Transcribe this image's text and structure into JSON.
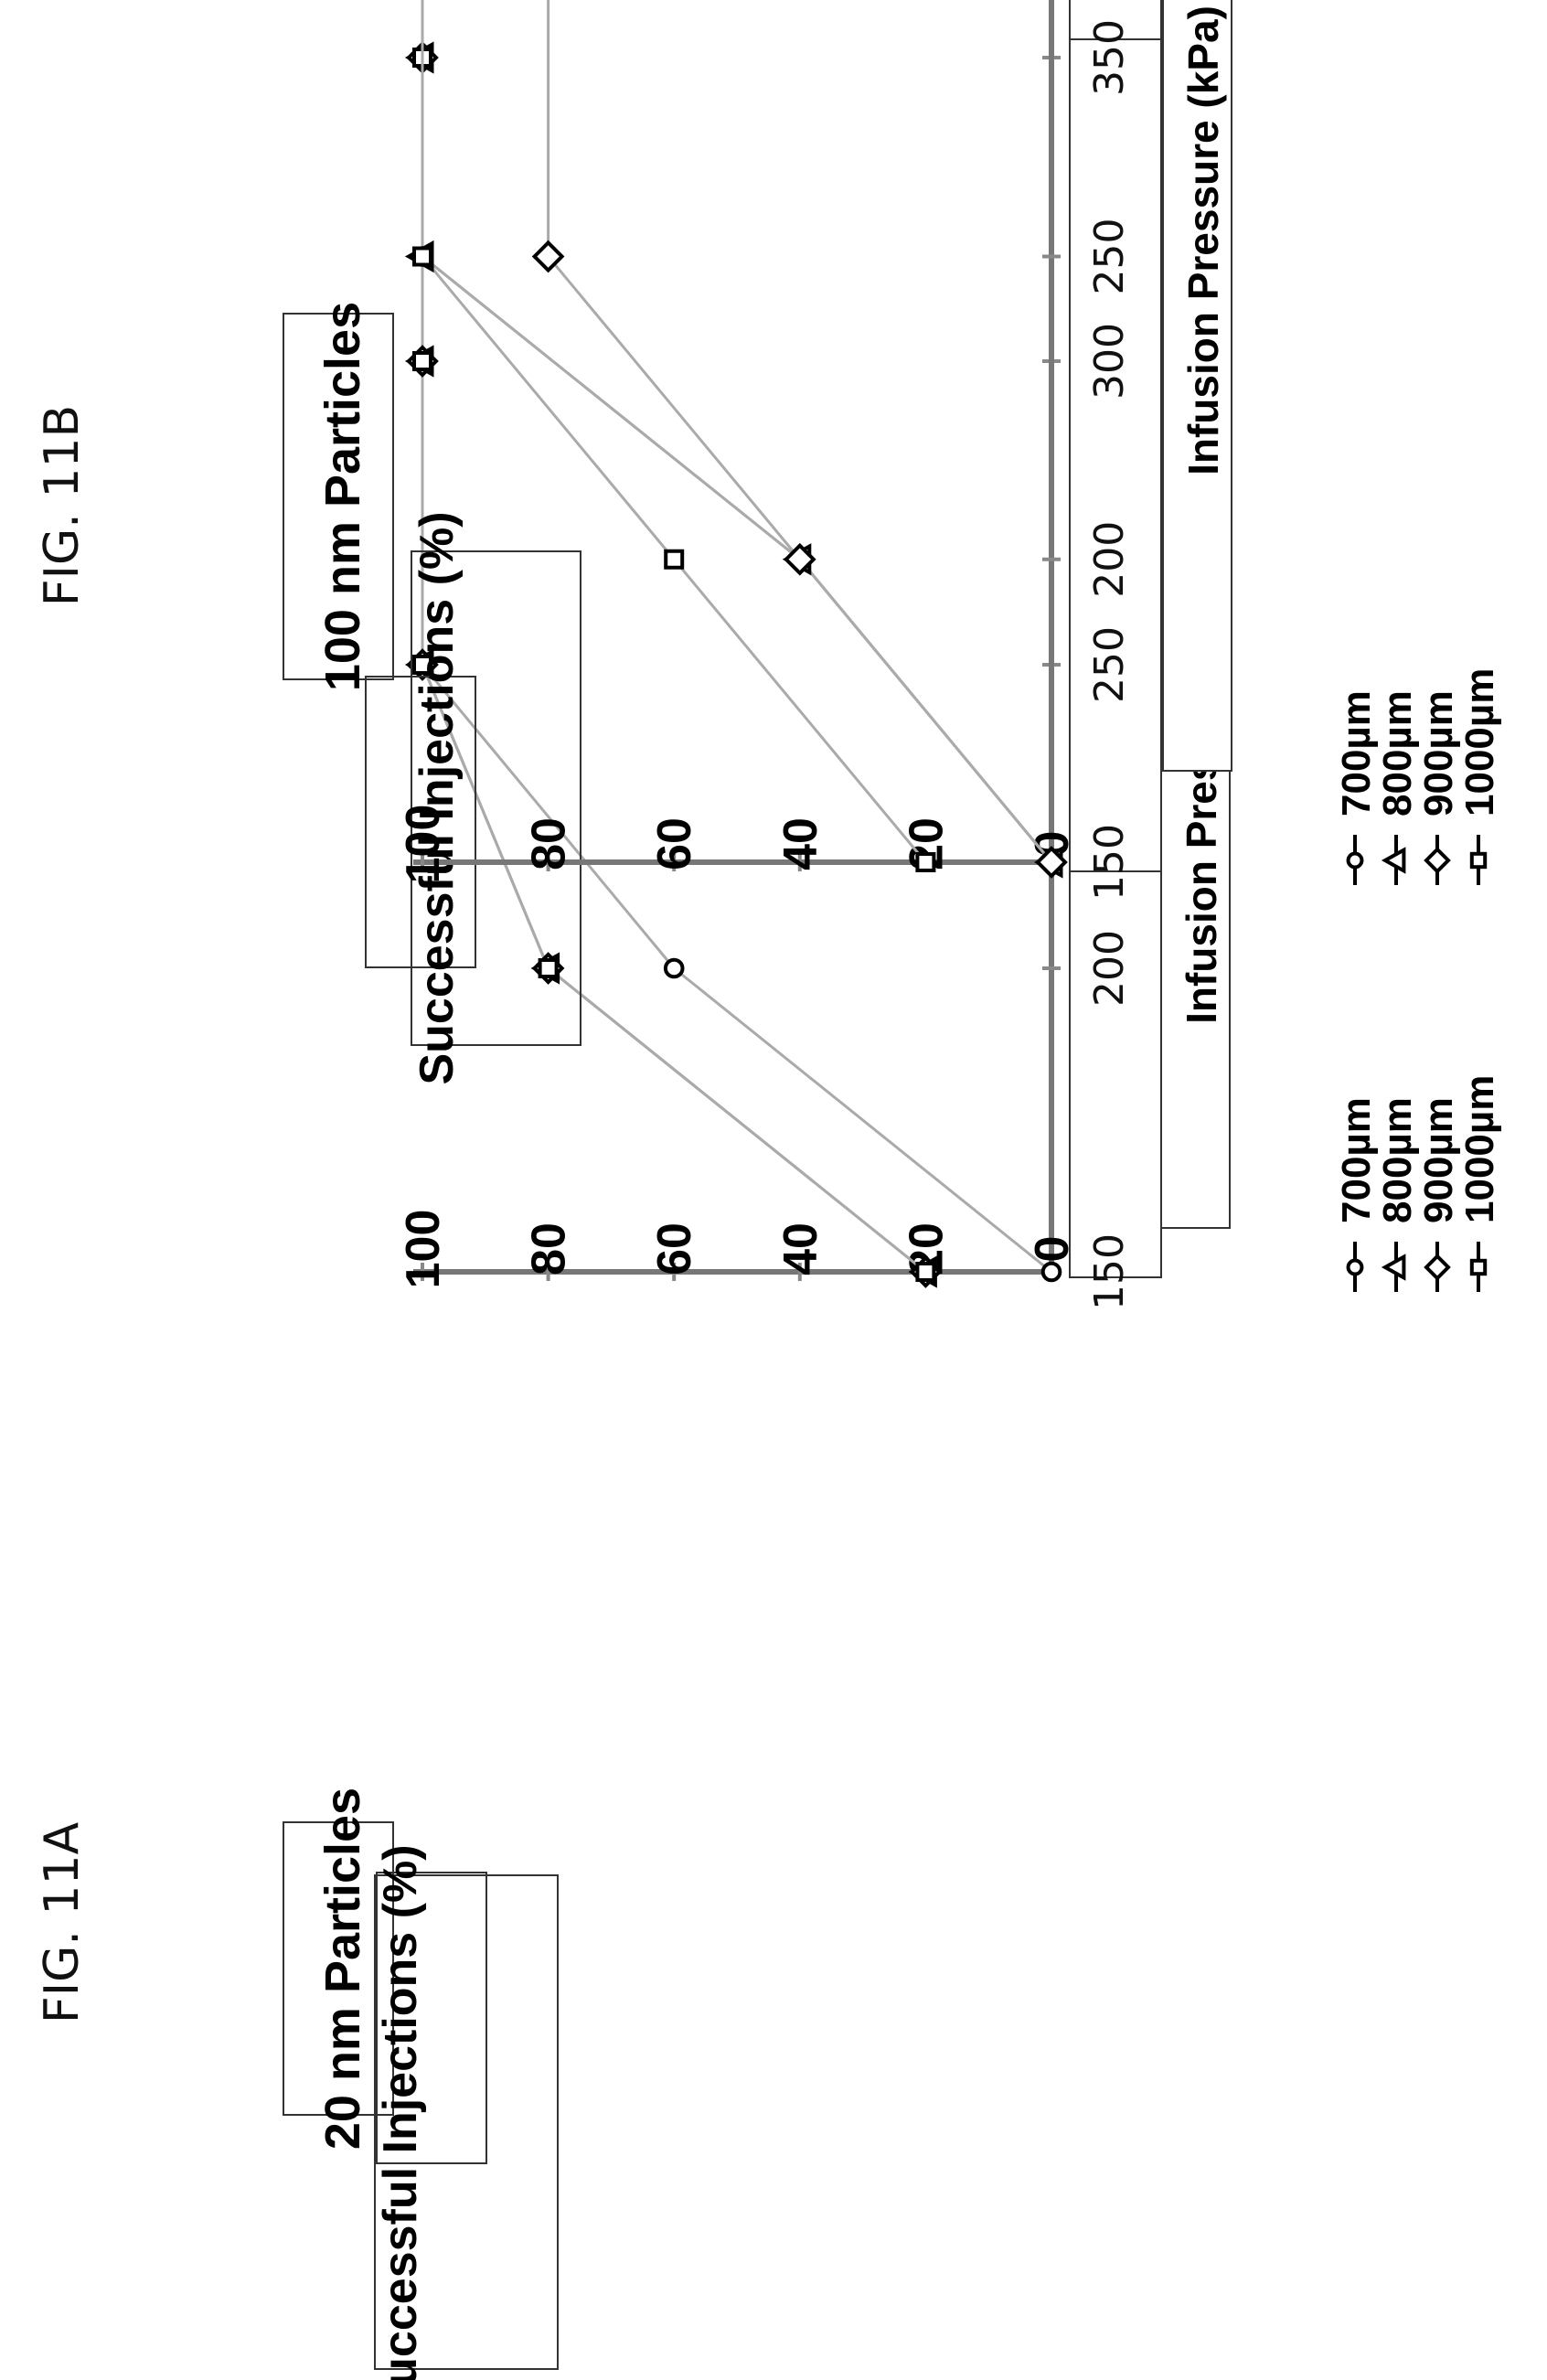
{
  "figure": {
    "charts": [
      {
        "fig_label": "FIG. 11A",
        "title": "20 nm Particles"
      },
      {
        "fig_label": "FIG. 11B",
        "title": "100 nm Particles"
      }
    ]
  },
  "chart_data": [
    {
      "type": "line",
      "title": "20 nm Particles",
      "xlabel": "Infusion Pressure (kPa)",
      "ylabel": "Successful Injections (%)",
      "x": [
        150,
        200,
        250,
        300,
        350
      ],
      "x_ticks": [
        "150",
        "200",
        "250",
        "300",
        "350"
      ],
      "y_ticks": [
        "0",
        "20",
        "40",
        "60",
        "80",
        "100"
      ],
      "xlim": [
        150,
        350
      ],
      "ylim": [
        0,
        100
      ],
      "grid": false,
      "legend_position": "bottom",
      "series": [
        {
          "name": "700µm",
          "marker": "circle",
          "values": [
            0,
            60,
            100,
            100,
            100
          ]
        },
        {
          "name": "800µm",
          "marker": "triangle",
          "values": [
            20,
            80,
            100,
            100,
            100
          ]
        },
        {
          "name": "900µm",
          "marker": "diamond",
          "values": [
            20,
            80,
            100,
            100,
            100
          ]
        },
        {
          "name": "1000µm",
          "marker": "square",
          "values": [
            20,
            80,
            100,
            100,
            100
          ]
        }
      ]
    },
    {
      "type": "line",
      "title": "100 nm Particles",
      "xlabel": "Infusion Pressure (kPa)",
      "ylabel": "Successful Injections (%)",
      "x": [
        150,
        200,
        250,
        300,
        350
      ],
      "x_ticks": [
        "150",
        "200",
        "250",
        "300",
        "350"
      ],
      "y_ticks": [
        "0",
        "20",
        "40",
        "60",
        "80",
        "100"
      ],
      "xlim": [
        150,
        350
      ],
      "ylim": [
        0,
        100
      ],
      "grid": false,
      "legend_position": "bottom",
      "series": [
        {
          "name": "700µm",
          "marker": "circle",
          "values": [
            0,
            40,
            100,
            100,
            100
          ]
        },
        {
          "name": "800µm",
          "marker": "triangle",
          "values": [
            0,
            40,
            100,
            100,
            100
          ]
        },
        {
          "name": "900µm",
          "marker": "diamond",
          "values": [
            0,
            40,
            80,
            80,
            80
          ]
        },
        {
          "name": "1000µm",
          "marker": "square",
          "values": [
            20,
            60,
            100,
            100,
            100
          ]
        }
      ]
    }
  ]
}
